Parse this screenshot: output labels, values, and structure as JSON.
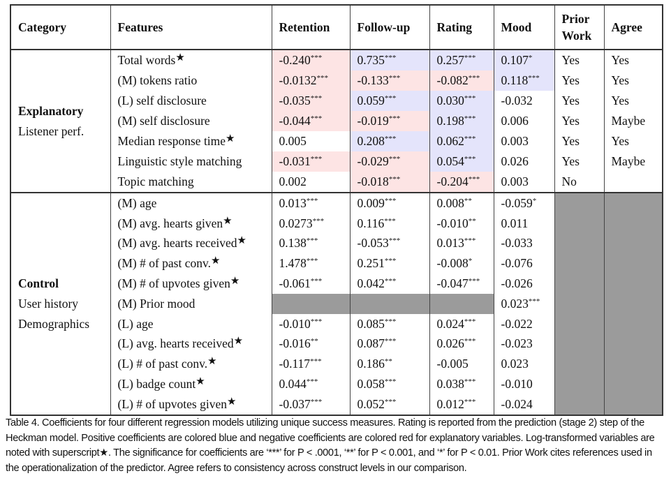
{
  "headers": {
    "category": "Category",
    "features": "Features",
    "retention": "Retention",
    "followup": "Follow-up",
    "rating": "Rating",
    "mood": "Mood",
    "prior_work": "Prior Work",
    "agree": "Agree"
  },
  "colors": {
    "positive": "#e4e4fb",
    "negative": "#fde4e4",
    "na": "#9b9b9b"
  },
  "star_symbol": "★",
  "sections": [
    {
      "id": "explanatory",
      "category_title": "Explanatory",
      "category_sub": [
        "Listener perf."
      ],
      "colored": true,
      "rows": [
        {
          "feature": "Total words",
          "log": true,
          "retention": [
            "-0.240",
            "***"
          ],
          "followup": [
            "0.735",
            "***"
          ],
          "rating": [
            "0.257",
            "***"
          ],
          "mood": [
            "0.107",
            "*"
          ],
          "prior_work": "Yes",
          "agree": "Yes"
        },
        {
          "feature": "(M) tokens ratio",
          "log": false,
          "retention": [
            "-0.0132",
            "***"
          ],
          "followup": [
            "-0.133",
            "***"
          ],
          "rating": [
            "-0.082",
            "***"
          ],
          "mood": [
            "0.118",
            "***"
          ],
          "prior_work": "Yes",
          "agree": "Yes"
        },
        {
          "feature": "(L) self disclosure",
          "log": false,
          "retention": [
            "-0.035",
            "***"
          ],
          "followup": [
            "0.059",
            "***"
          ],
          "rating": [
            "0.030",
            "***"
          ],
          "mood": [
            "-0.032",
            ""
          ],
          "prior_work": "Yes",
          "agree": "Yes"
        },
        {
          "feature": "(M) self disclosure",
          "log": false,
          "retention": [
            "-0.044",
            "***"
          ],
          "followup": [
            "-0.019",
            "***"
          ],
          "rating": [
            "0.198",
            "***"
          ],
          "mood": [
            "0.006",
            ""
          ],
          "prior_work": "Yes",
          "agree": "Maybe"
        },
        {
          "feature": "Median response time",
          "log": true,
          "retention": [
            "0.005",
            ""
          ],
          "followup": [
            "0.208",
            "***"
          ],
          "rating": [
            "0.062",
            "***"
          ],
          "mood": [
            "0.003",
            ""
          ],
          "prior_work": "Yes",
          "agree": "Yes"
        },
        {
          "feature": "Linguistic style matching",
          "log": false,
          "retention": [
            "-0.031",
            "***"
          ],
          "followup": [
            "-0.029",
            "***"
          ],
          "rating": [
            "0.054",
            "***"
          ],
          "mood": [
            "0.026",
            ""
          ],
          "prior_work": "Yes",
          "agree": "Maybe"
        },
        {
          "feature": "Topic matching",
          "log": false,
          "retention": [
            "0.002",
            ""
          ],
          "followup": [
            "-0.018",
            "***"
          ],
          "rating": [
            "-0.204",
            "***"
          ],
          "mood": [
            "0.003",
            ""
          ],
          "prior_work": "No",
          "agree": ""
        }
      ]
    },
    {
      "id": "control",
      "category_title": "Control",
      "category_sub": [
        "User history",
        "Demographics"
      ],
      "colored": false,
      "rows": [
        {
          "feature": "(M) age",
          "log": false,
          "retention": [
            "0.013",
            "***"
          ],
          "followup": [
            "0.009",
            "***"
          ],
          "rating": [
            "0.008",
            "**"
          ],
          "mood": [
            "-0.059",
            "*"
          ]
        },
        {
          "feature": "(M) avg. hearts given",
          "log": true,
          "retention": [
            "0.0273",
            "***"
          ],
          "followup": [
            "0.116",
            "***"
          ],
          "rating": [
            "-0.010",
            "**"
          ],
          "mood": [
            "0.011",
            ""
          ]
        },
        {
          "feature": "(M) avg. hearts received",
          "log": true,
          "retention": [
            "0.138",
            "***"
          ],
          "followup": [
            "-0.053",
            "***"
          ],
          "rating": [
            "0.013",
            "***"
          ],
          "mood": [
            "-0.033",
            ""
          ]
        },
        {
          "feature": "(M) # of past conv.",
          "log": true,
          "retention": [
            "1.478",
            "***"
          ],
          "followup": [
            "0.251",
            "***"
          ],
          "rating": [
            "-0.008",
            "*"
          ],
          "mood": [
            "-0.076",
            ""
          ]
        },
        {
          "feature": "(M) # of upvotes given",
          "log": true,
          "retention": [
            "-0.061",
            "***"
          ],
          "followup": [
            "0.042",
            "***"
          ],
          "rating": [
            "-0.047",
            "***"
          ],
          "mood": [
            "-0.026",
            ""
          ]
        },
        {
          "feature": "(M) Prior mood",
          "log": false,
          "retention": null,
          "followup": null,
          "rating": null,
          "mood": [
            "0.023",
            "***"
          ]
        },
        {
          "feature": "(L) age",
          "log": false,
          "retention": [
            "-0.010",
            "***"
          ],
          "followup": [
            "0.085",
            "***"
          ],
          "rating": [
            "0.024",
            "***"
          ],
          "mood": [
            "-0.022",
            ""
          ]
        },
        {
          "feature": "(L) avg. hearts received",
          "log": true,
          "retention": [
            "-0.016",
            "**"
          ],
          "followup": [
            "0.087",
            "***"
          ],
          "rating": [
            "0.026",
            "***"
          ],
          "mood": [
            "-0.023",
            ""
          ]
        },
        {
          "feature": "(L) # of past conv.",
          "log": true,
          "retention": [
            "-0.117",
            "***"
          ],
          "followup": [
            "0.186",
            "**"
          ],
          "rating": [
            "-0.005",
            ""
          ],
          "mood": [
            "0.023",
            ""
          ]
        },
        {
          "feature": "(L) badge count",
          "log": true,
          "retention": [
            "0.044",
            "***"
          ],
          "followup": [
            "0.058",
            "***"
          ],
          "rating": [
            "0.038",
            "***"
          ],
          "mood": [
            "-0.010",
            ""
          ]
        },
        {
          "feature": "(L) # of upvotes given",
          "log": true,
          "retention": [
            "-0.037",
            "***"
          ],
          "followup": [
            "0.052",
            "***"
          ],
          "rating": [
            "0.012",
            "***"
          ],
          "mood": [
            "-0.024",
            ""
          ]
        }
      ]
    }
  ],
  "caption": "Table 4.  Coefficients for four different regression models utilizing unique success measures. Rating is reported from the prediction (stage 2) step of the Heckman model. Positive coefficients are colored blue and negative coefficients are colored red for explanatory variables. Log-transformed variables are noted with superscript★. The significance for coefficients are ‘***’ for P < .0001, ‘**’ for P < 0.001, and ‘*’ for P < 0.01. Prior Work cites references used in the operationalization of the predictor. Agree refers to consistency across construct levels in our comparison."
}
